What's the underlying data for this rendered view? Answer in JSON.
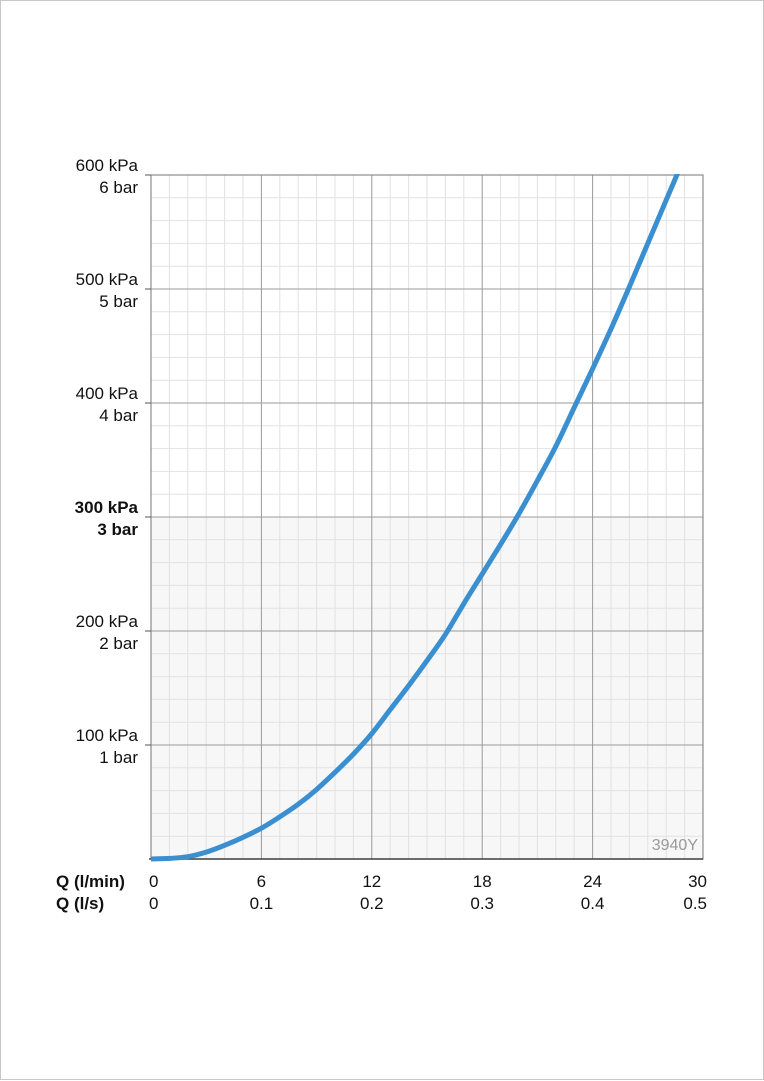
{
  "chart_data": {
    "type": "line",
    "title": "",
    "watermark": "3940Y",
    "x_axis": {
      "primary_label": "Q (l/min)",
      "secondary_label": "Q (l/s)",
      "range": [
        0,
        30
      ],
      "ticks": [
        0,
        6,
        12,
        18,
        24,
        30
      ],
      "tick_labels": [
        "0",
        "6",
        "12",
        "18",
        "24",
        "30"
      ],
      "secondary_tick_labels": [
        "0",
        "0.1",
        "0.2",
        "0.3",
        "0.4",
        "0.5"
      ]
    },
    "y_axis": {
      "unit": "kPa",
      "range": [
        0,
        600
      ],
      "ticks": [
        100,
        200,
        300,
        400,
        500,
        600
      ],
      "tick_labels": [
        {
          "kpa": "600 kPa",
          "bar": "6 bar",
          "bold": false
        },
        {
          "kpa": "500 kPa",
          "bar": "5 bar",
          "bold": false
        },
        {
          "kpa": "400 kPa",
          "bar": "4 bar",
          "bold": false
        },
        {
          "kpa": "300 kPa",
          "bar": "3 bar",
          "bold": true
        },
        {
          "kpa": "200 kPa",
          "bar": "2 bar",
          "bold": false
        },
        {
          "kpa": "100 kPa",
          "bar": "1 bar",
          "bold": false
        }
      ]
    },
    "grid": true,
    "shaded_region_below_kpa": 300,
    "series": [
      {
        "color": "#3a8fd0",
        "x": [
          0,
          1,
          2,
          3,
          4,
          5,
          6,
          7,
          8,
          9,
          10,
          11,
          12,
          13,
          14,
          15,
          16,
          17,
          18,
          19,
          20,
          21,
          22,
          23,
          24,
          25,
          26,
          27,
          28
        ],
        "y": [
          0,
          0.5,
          2,
          6,
          12,
          19,
          27,
          37,
          48,
          61,
          76,
          92,
          110,
          131,
          152,
          174,
          197,
          224,
          250,
          276,
          303,
          332,
          362,
          396,
          430,
          465,
          502,
          540,
          578
        ]
      }
    ]
  }
}
